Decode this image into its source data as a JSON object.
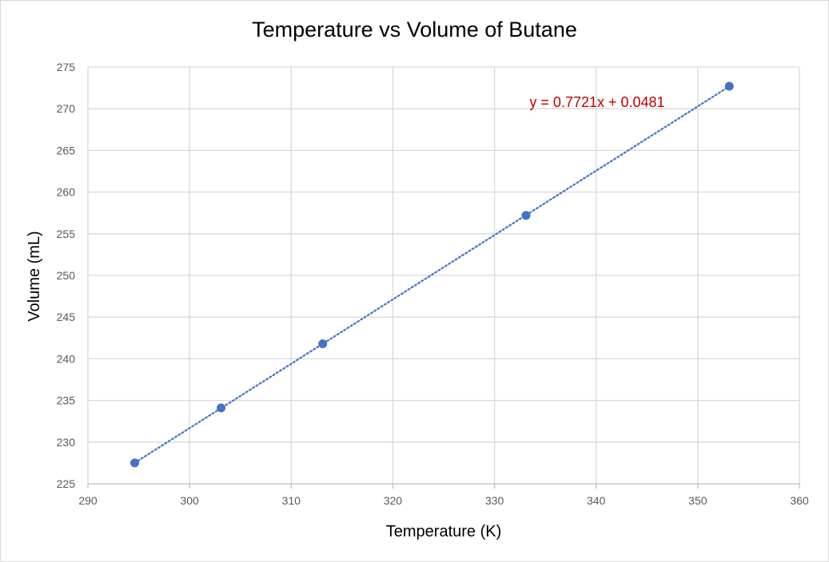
{
  "chart_data": {
    "type": "scatter",
    "title": "Temperature vs Volume of Butane",
    "xlabel": "Temperature (K)",
    "ylabel": "Volume (mL)",
    "xlim": [
      290,
      360
    ],
    "ylim": [
      225,
      275
    ],
    "xticks": [
      290,
      300,
      310,
      320,
      330,
      340,
      350,
      360
    ],
    "yticks": [
      225,
      230,
      235,
      240,
      245,
      250,
      255,
      260,
      265,
      270,
      275
    ],
    "grid": true,
    "series": [
      {
        "x": [
          294.6,
          303.1,
          313.1,
          333.1,
          353.1
        ],
        "y": [
          227.5,
          234.1,
          241.8,
          257.2,
          272.7
        ],
        "color": "#4472c4"
      }
    ],
    "trendline": {
      "type": "linear",
      "equation": "y = 0.7721x + 0.0481",
      "slope": 0.7721,
      "intercept": 0.0481,
      "x_range": [
        294.6,
        353.1
      ],
      "color": "#4472c4",
      "style": "dotted",
      "label_color": "#c00000"
    }
  }
}
